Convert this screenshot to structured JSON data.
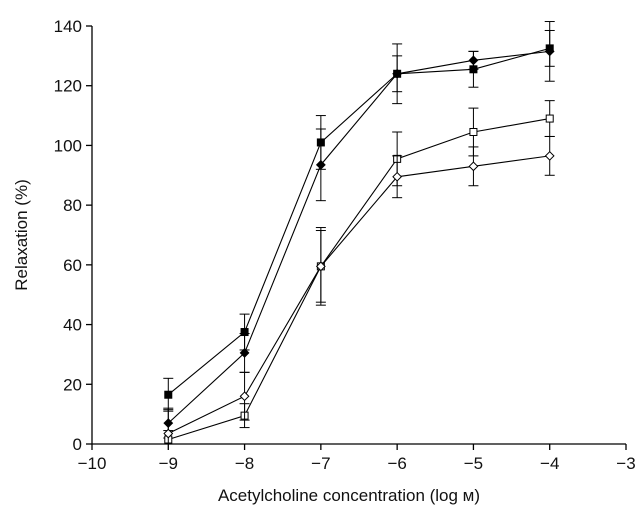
{
  "chart_data": {
    "type": "line",
    "xlabel": "Acetylcholine concentration (log м)",
    "ylabel": "Relaxation (%)",
    "xlim": [
      -10,
      -3
    ],
    "ylim": [
      0,
      140
    ],
    "xticks": [
      -10,
      -9,
      -8,
      -7,
      -6,
      -5,
      -4,
      -3
    ],
    "yticks": [
      0,
      20,
      40,
      60,
      80,
      100,
      120,
      140
    ],
    "grid": false,
    "x": [
      -9,
      -8,
      -7,
      -6,
      -5,
      -4
    ],
    "series": [
      {
        "marker": "filled-square",
        "values": [
          16.5,
          37.5,
          101,
          124,
          125.5,
          132.5
        ],
        "errors": [
          5.5,
          6,
          9,
          10,
          6,
          6
        ]
      },
      {
        "marker": "filled-diamond",
        "values": [
          7,
          30.5,
          93.5,
          124,
          128.5,
          131.5
        ],
        "errors": [
          5,
          6.5,
          12,
          6,
          3,
          10
        ]
      },
      {
        "marker": "open-square",
        "values": [
          1.5,
          9.5,
          59.5,
          95.5,
          104.5,
          109
        ],
        "errors": [
          3,
          4,
          13,
          9,
          8,
          6
        ]
      },
      {
        "marker": "open-diamond",
        "values": [
          3.5,
          16,
          59.5,
          89.5,
          93,
          96.5
        ],
        "errors": [
          8,
          8,
          12,
          7,
          6.5,
          6.5
        ]
      }
    ]
  }
}
